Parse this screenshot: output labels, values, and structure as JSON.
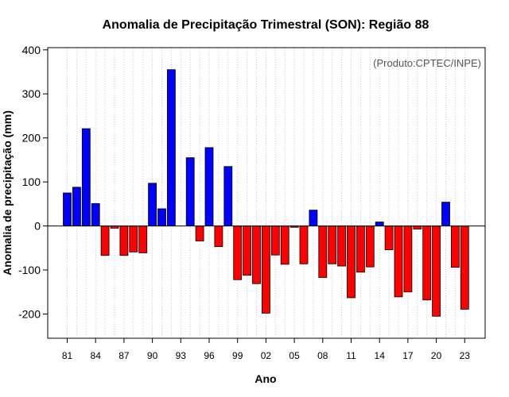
{
  "chart_data": {
    "type": "bar",
    "title": "Anomalia de Precipitação Trimestral (SON): Região 88",
    "xlabel": "Ano",
    "ylabel": "Anomalia de precipitação (mm)",
    "credit": "(Produto:CPTEC/INPE)",
    "ylim": [
      -255,
      405
    ],
    "yticks": [
      -200,
      -100,
      0,
      100,
      200,
      300,
      400
    ],
    "year_range": [
      1981,
      2023
    ],
    "tick_years": [
      1981,
      1984,
      1987,
      1990,
      1993,
      1996,
      1999,
      2002,
      2005,
      2008,
      2011,
      2014,
      2017,
      2020,
      2023
    ],
    "tick_labels": [
      "81",
      "84",
      "87",
      "90",
      "93",
      "96",
      "99",
      "02",
      "05",
      "08",
      "11",
      "14",
      "17",
      "20",
      "23"
    ],
    "years": [
      1981,
      1982,
      1983,
      1984,
      1985,
      1986,
      1987,
      1988,
      1989,
      1990,
      1991,
      1992,
      1993,
      1994,
      1995,
      1996,
      1997,
      1998,
      1999,
      2000,
      2001,
      2002,
      2003,
      2004,
      2005,
      2006,
      2007,
      2008,
      2009,
      2010,
      2011,
      2012,
      2013,
      2014,
      2015,
      2016,
      2017,
      2018,
      2019,
      2020,
      2021,
      2022,
      2023
    ],
    "values": [
      75,
      88,
      221,
      51,
      -67,
      -5,
      -67,
      -59,
      -61,
      97,
      39,
      355,
      0,
      155,
      -34,
      178,
      -47,
      135,
      -122,
      -112,
      -131,
      -198,
      -66,
      -87,
      -3,
      -86,
      36,
      -117,
      -86,
      -91,
      -163,
      -105,
      -93,
      9,
      -54,
      -161,
      -150,
      -7,
      -168,
      -205,
      54,
      -94,
      -189
    ],
    "colors": {
      "positive": "#0000ff",
      "negative": "#ff0000",
      "zero_line": "#000000",
      "grid": "#c8c8c8"
    }
  }
}
